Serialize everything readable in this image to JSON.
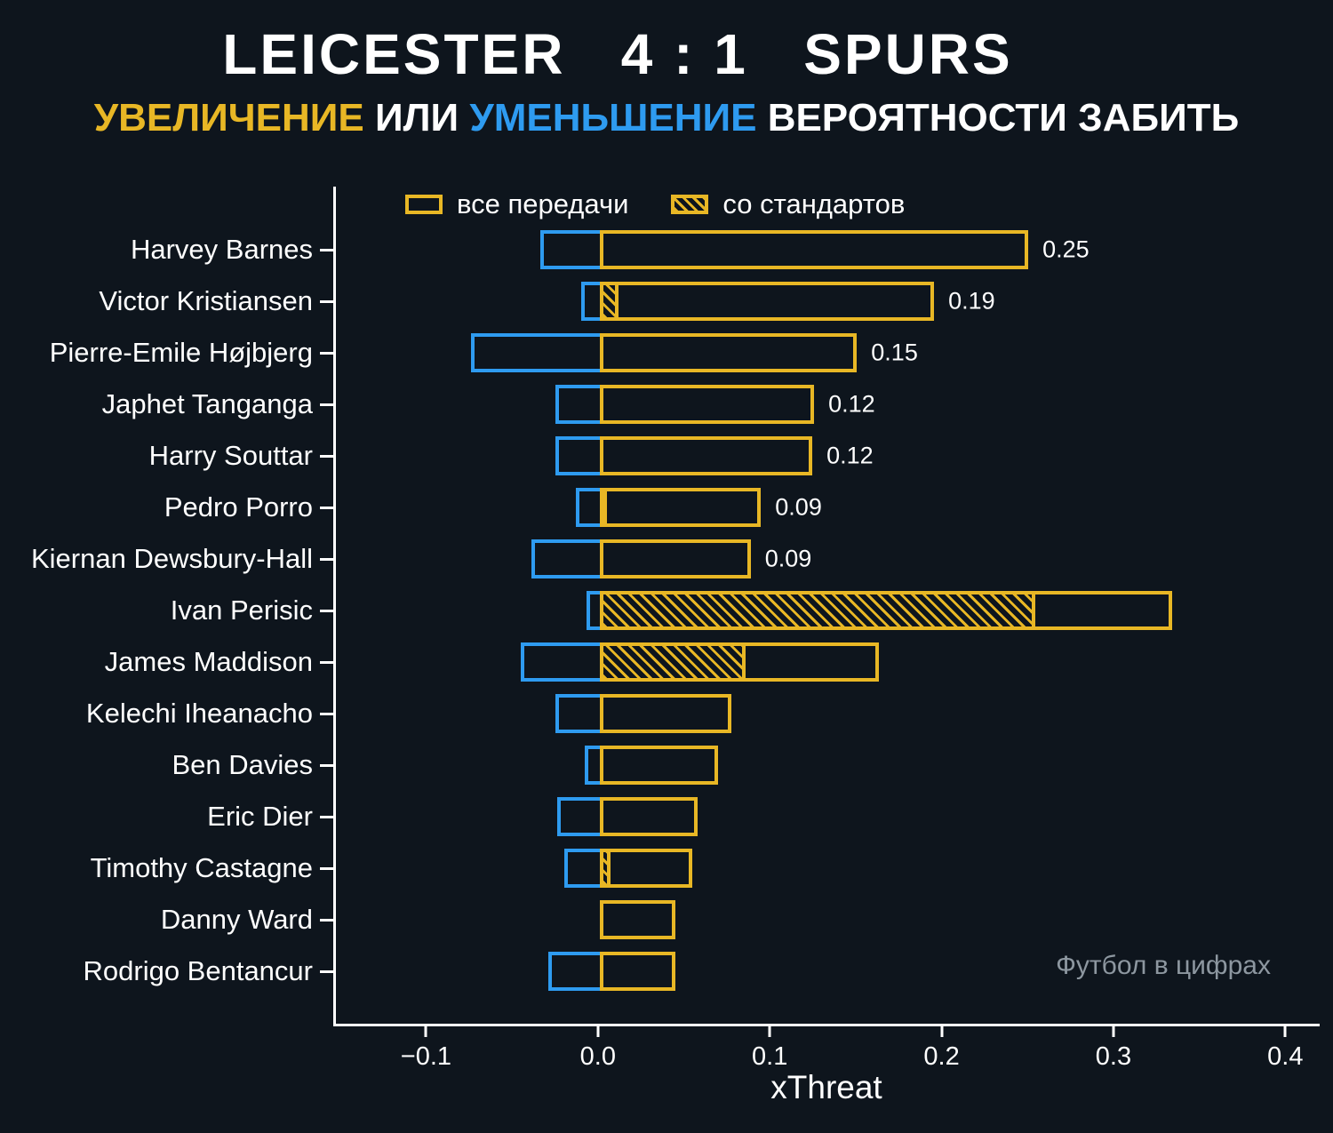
{
  "header": {
    "match_title": "LEICESTER   4 : 1   SPURS",
    "subtitle_increase": "УВЕЛИЧЕНИЕ",
    "subtitle_or": "ИЛИ",
    "subtitle_decrease": "УМЕНЬШЕНИЕ",
    "subtitle_rest": "ВЕРОЯТНОСТИ ЗАБИТЬ"
  },
  "legend": {
    "all_passes": "все передачи",
    "set_pieces": "со стандартов"
  },
  "watermark": "Футбол в цифрах",
  "colors": {
    "background": "#0e151d",
    "increase_yellow": "#e8b725",
    "decrease_blue": "#2e9bf0",
    "text": "#ffffff",
    "watermark_gray": "#8d97a0"
  },
  "chart_data": {
    "type": "bar",
    "orientation": "horizontal",
    "xlabel": "xThreat",
    "xlim": [
      -0.154,
      0.42
    ],
    "x_ticks": [
      -0.1,
      0.0,
      0.1,
      0.2,
      0.3,
      0.4
    ],
    "x_tick_labels": [
      "−0.1",
      "0.0",
      "0.1",
      "0.2",
      "0.3",
      "0.4"
    ],
    "legend_entries": [
      "все передачи",
      "со стандартов"
    ],
    "players": [
      {
        "name": "Harvey Barnes",
        "positive": 0.25,
        "negative": -0.035,
        "setpiece": 0.0,
        "value_label": "0.25"
      },
      {
        "name": "Victor Kristiansen",
        "positive": 0.195,
        "negative": -0.011,
        "setpiece": 0.011,
        "value_label": "0.19"
      },
      {
        "name": "Pierre-Emile Højbjerg",
        "positive": 0.15,
        "negative": -0.075,
        "setpiece": 0.0,
        "value_label": "0.15"
      },
      {
        "name": "Japhet Tanganga",
        "positive": 0.125,
        "negative": -0.026,
        "setpiece": 0.0,
        "value_label": "0.12"
      },
      {
        "name": "Harry Souttar",
        "positive": 0.124,
        "negative": -0.026,
        "setpiece": 0.0,
        "value_label": "0.12"
      },
      {
        "name": "Pedro Porro",
        "positive": 0.094,
        "negative": -0.014,
        "setpiece": 0.004,
        "value_label": "0.09"
      },
      {
        "name": "Kiernan Dewsbury-Hall",
        "positive": 0.088,
        "negative": -0.04,
        "setpiece": 0.0,
        "value_label": "0.09"
      },
      {
        "name": "Ivan Perisic",
        "positive": 0.334,
        "negative": -0.008,
        "setpiece": 0.254,
        "value_label": ""
      },
      {
        "name": "James Maddison",
        "positive": 0.163,
        "negative": -0.046,
        "setpiece": 0.085,
        "value_label": ""
      },
      {
        "name": "Kelechi Iheanacho",
        "positive": 0.077,
        "negative": -0.026,
        "setpiece": 0.0,
        "value_label": ""
      },
      {
        "name": "Ben Davies",
        "positive": 0.069,
        "negative": -0.009,
        "setpiece": 0.0,
        "value_label": ""
      },
      {
        "name": "Eric Dier",
        "positive": 0.057,
        "negative": -0.025,
        "setpiece": 0.0,
        "value_label": ""
      },
      {
        "name": "Timothy Castagne",
        "positive": 0.054,
        "negative": -0.021,
        "setpiece": 0.006,
        "value_label": ""
      },
      {
        "name": "Danny Ward",
        "positive": 0.044,
        "negative": 0.0,
        "setpiece": 0.0,
        "value_label": ""
      },
      {
        "name": "Rodrigo Bentancur",
        "positive": 0.044,
        "negative": -0.03,
        "setpiece": 0.0,
        "value_label": ""
      }
    ]
  }
}
